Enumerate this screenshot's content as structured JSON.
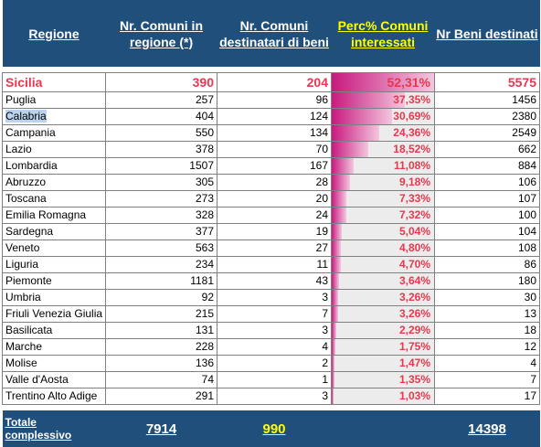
{
  "headers": {
    "regione": "Regione",
    "comuni_in_regione": "Nr. Comuni in regione (*)",
    "comuni_destinatari": "Nr. Comuni destinatari di beni",
    "perc_comuni": "Perc% Comuni interessati",
    "nr_beni": "Nr Beni destinati"
  },
  "rows": [
    {
      "regione": "Sicilia",
      "comuni": "390",
      "destinatari": "204",
      "perc": "52,31%",
      "perc_value": 52.31,
      "beni": "5575"
    },
    {
      "regione": "Puglia",
      "comuni": "257",
      "destinatari": "96",
      "perc": "37,35%",
      "perc_value": 37.35,
      "beni": "1456"
    },
    {
      "regione": "Calabria",
      "comuni": "404",
      "destinatari": "124",
      "perc": "30,69%",
      "perc_value": 30.69,
      "beni": "2380"
    },
    {
      "regione": "Campania",
      "comuni": "550",
      "destinatari": "134",
      "perc": "24,36%",
      "perc_value": 24.36,
      "beni": "2549"
    },
    {
      "regione": "Lazio",
      "comuni": "378",
      "destinatari": "70",
      "perc": "18,52%",
      "perc_value": 18.52,
      "beni": "662"
    },
    {
      "regione": "Lombardia",
      "comuni": "1507",
      "destinatari": "167",
      "perc": "11,08%",
      "perc_value": 11.08,
      "beni": "884"
    },
    {
      "regione": "Abruzzo",
      "comuni": "305",
      "destinatari": "28",
      "perc": "9,18%",
      "perc_value": 9.18,
      "beni": "106"
    },
    {
      "regione": "Toscana",
      "comuni": "273",
      "destinatari": "20",
      "perc": "7,33%",
      "perc_value": 7.33,
      "beni": "107"
    },
    {
      "regione": "Emilia Romagna",
      "comuni": "328",
      "destinatari": "24",
      "perc": "7,32%",
      "perc_value": 7.32,
      "beni": "100"
    },
    {
      "regione": "Sardegna",
      "comuni": "377",
      "destinatari": "19",
      "perc": "5,04%",
      "perc_value": 5.04,
      "beni": "104"
    },
    {
      "regione": "Veneto",
      "comuni": "563",
      "destinatari": "27",
      "perc": "4,80%",
      "perc_value": 4.8,
      "beni": "108"
    },
    {
      "regione": "Liguria",
      "comuni": "234",
      "destinatari": "11",
      "perc": "4,70%",
      "perc_value": 4.7,
      "beni": "86"
    },
    {
      "regione": "Piemonte",
      "comuni": "1181",
      "destinatari": "43",
      "perc": "3,64%",
      "perc_value": 3.64,
      "beni": "180"
    },
    {
      "regione": "Umbria",
      "comuni": "92",
      "destinatari": "3",
      "perc": "3,26%",
      "perc_value": 3.26,
      "beni": "30"
    },
    {
      "regione": "Friuli Venezia Giulia",
      "comuni": "215",
      "destinatari": "7",
      "perc": "3,26%",
      "perc_value": 3.26,
      "beni": "13"
    },
    {
      "regione": "Basilicata",
      "comuni": "131",
      "destinatari": "3",
      "perc": "2,29%",
      "perc_value": 2.29,
      "beni": "18"
    },
    {
      "regione": "Marche",
      "comuni": "228",
      "destinatari": "4",
      "perc": "1,75%",
      "perc_value": 1.75,
      "beni": "12"
    },
    {
      "regione": "Molise",
      "comuni": "136",
      "destinatari": "2",
      "perc": "1,47%",
      "perc_value": 1.47,
      "beni": "4"
    },
    {
      "regione": "Valle d'Aosta",
      "comuni": "74",
      "destinatari": "1",
      "perc": "1,35%",
      "perc_value": 1.35,
      "beni": "7"
    },
    {
      "regione": "Trentino Alto Adige",
      "comuni": "291",
      "destinatari": "3",
      "perc": "1,03%",
      "perc_value": 1.03,
      "beni": "17"
    }
  ],
  "selected_region": "Calabria",
  "totals": {
    "label": "Totale complessivo",
    "comuni": "7914",
    "destinatari": "990",
    "beni": "14398"
  },
  "colors": {
    "header_bg": "#1f4f7a",
    "header_highlight": "#ffff00",
    "accent_red": "#e8384f",
    "bar_magenta": "#c8197f",
    "selection": "#bcd3ee"
  }
}
